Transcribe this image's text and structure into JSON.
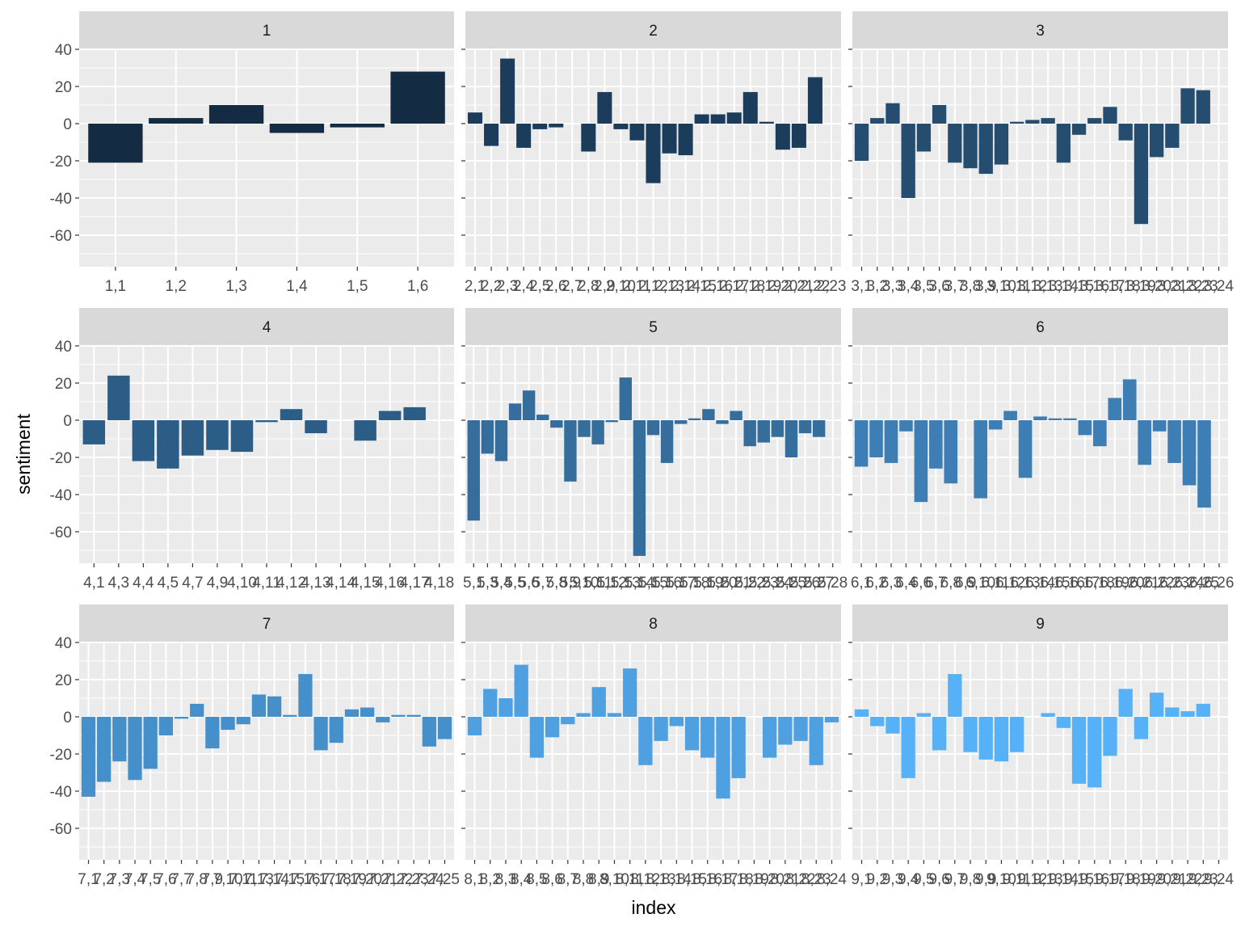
{
  "chart_data": {
    "type": "bar",
    "xlabel": "index",
    "ylabel": "sentiment",
    "ylim": [
      -77,
      40
    ],
    "yticks": [
      40,
      20,
      0,
      -20,
      -40,
      -60
    ],
    "grid": true,
    "legend": "none",
    "color_scale": {
      "low": "#132B43",
      "high": "#56B1F7"
    },
    "panels": [
      {
        "strip": "1",
        "tick_labels": [
          "1,1",
          "1,2",
          "1,3",
          "1,4",
          "1,5",
          "1,6"
        ],
        "values": [
          -21,
          3,
          10,
          -5,
          -2,
          28
        ]
      },
      {
        "strip": "2",
        "tick_labels": [
          "2,1",
          "2,2",
          "2,3",
          "2,4",
          "2,5",
          "2,6",
          "2,7",
          "2,8",
          "2,9",
          "2,10",
          "2,11",
          "2,12",
          "2,13",
          "2,14",
          "2,15",
          "2,16",
          "2,17",
          "2,18",
          "2,19",
          "2,20",
          "2,21",
          "2,22",
          "2,23"
        ],
        "values": [
          6,
          -12,
          35,
          -13,
          -3,
          -2,
          0,
          -15,
          17,
          -3,
          -9,
          -32,
          -16,
          -17,
          5,
          5,
          6,
          17,
          1,
          -14,
          -13,
          25,
          0
        ]
      },
      {
        "strip": "3",
        "tick_labels": [
          "3,1",
          "3,2",
          "3,3",
          "3,4",
          "3,5",
          "3,6",
          "3,7",
          "3,8",
          "3,9",
          "3,10",
          "3,11",
          "3,12",
          "3,13",
          "3,14",
          "3,15",
          "3,16",
          "3,17",
          "3,18",
          "3,19",
          "3,20",
          "3,21",
          "3,22",
          "3,23",
          "3,24"
        ],
        "values": [
          -20,
          3,
          11,
          -40,
          -15,
          10,
          -21,
          -24,
          -27,
          -22,
          1,
          2,
          3,
          -21,
          -6,
          3,
          9,
          -9,
          -54,
          -18,
          -13,
          19,
          18,
          0
        ]
      },
      {
        "strip": "4",
        "tick_labels": [
          "4,1",
          "4,3",
          "4,4",
          "4,5",
          "4,7",
          "4,9",
          "4,10",
          "4,11",
          "4,12",
          "4,13",
          "4,14",
          "4,15",
          "4,16",
          "4,17",
          "4,18"
        ],
        "values": [
          -13,
          24,
          -22,
          -26,
          -19,
          -16,
          -17,
          -1,
          6,
          -7,
          0,
          -11,
          5,
          7,
          0
        ]
      },
      {
        "strip": "5",
        "tick_labels": [
          "5,1",
          "5,3",
          "5,4",
          "5,5",
          "5,6",
          "5,7",
          "5,8",
          "5,9",
          "5,10",
          "5,11",
          "5,12",
          "5,13",
          "5,14",
          "5,15",
          "5,16",
          "5,17",
          "5,18",
          "5,19",
          "5,20",
          "5,21",
          "5,22",
          "5,23",
          "5,24",
          "5,25",
          "5,26",
          "5,27",
          "5,28"
        ],
        "values": [
          -54,
          -18,
          -22,
          9,
          16,
          3,
          -4,
          -33,
          -9,
          -13,
          -1,
          23,
          -73,
          -8,
          -23,
          -2,
          1,
          6,
          -2,
          5,
          -14,
          -12,
          -9,
          -20,
          -7,
          -9,
          0
        ]
      },
      {
        "strip": "6",
        "tick_labels": [
          "6,1",
          "6,2",
          "6,3",
          "6,4",
          "6,6",
          "6,7",
          "6,8",
          "6,9",
          "6,10",
          "6,11",
          "6,12",
          "6,13",
          "6,14",
          "6,15",
          "6,16",
          "6,17",
          "6,18",
          "6,19",
          "6,20",
          "6,21",
          "6,22",
          "6,23",
          "6,24",
          "6,25",
          "6,26"
        ],
        "values": [
          -25,
          -20,
          -23,
          -6,
          -44,
          -26,
          -34,
          0,
          -42,
          -5,
          5,
          -31,
          2,
          1,
          1,
          -8,
          -14,
          12,
          22,
          -24,
          -6,
          -23,
          -35,
          -47,
          0
        ]
      },
      {
        "strip": "7",
        "tick_labels": [
          "7,1",
          "7,2",
          "7,3",
          "7,4",
          "7,5",
          "7,6",
          "7,7",
          "7,8",
          "7,9",
          "7,10",
          "7,11",
          "7,13",
          "7,14",
          "7,15",
          "7,16",
          "7,17",
          "7,18",
          "7,19",
          "7,20",
          "7,21",
          "7,22",
          "7,23",
          "7,24",
          "7,25"
        ],
        "values": [
          -43,
          -35,
          -24,
          -34,
          -28,
          -10,
          -1,
          7,
          -17,
          -7,
          -4,
          12,
          11,
          1,
          23,
          -18,
          -14,
          4,
          5,
          -3,
          1,
          1,
          -16,
          -12
        ]
      },
      {
        "strip": "8",
        "tick_labels": [
          "8,1",
          "8,2",
          "8,3",
          "8,4",
          "8,5",
          "8,6",
          "8,7",
          "8,8",
          "8,9",
          "8,10",
          "8,11",
          "8,12",
          "8,13",
          "8,14",
          "8,15",
          "8,16",
          "8,17",
          "8,18",
          "8,19",
          "8,20",
          "8,21",
          "8,22",
          "8,23",
          "8,24"
        ],
        "values": [
          -10,
          15,
          10,
          28,
          -22,
          -11,
          -4,
          2,
          16,
          2,
          26,
          -26,
          -13,
          -5,
          -18,
          -22,
          -44,
          -33,
          0,
          -22,
          -15,
          -13,
          -26,
          -3
        ]
      },
      {
        "strip": "9",
        "tick_labels": [
          "9,1",
          "9,2",
          "9,3",
          "9,4",
          "9,5",
          "9,6",
          "9,7",
          "9,8",
          "9,9",
          "9,10",
          "9,11",
          "9,12",
          "9,13",
          "9,14",
          "9,15",
          "9,16",
          "9,17",
          "9,18",
          "9,19",
          "9,20",
          "9,21",
          "9,22",
          "9,23",
          "9,24"
        ],
        "values": [
          4,
          -5,
          -9,
          -33,
          2,
          -18,
          23,
          -19,
          -23,
          -24,
          -19,
          0,
          2,
          -6,
          -36,
          -38,
          -21,
          15,
          -12,
          13,
          5,
          3,
          7,
          0
        ]
      }
    ]
  }
}
